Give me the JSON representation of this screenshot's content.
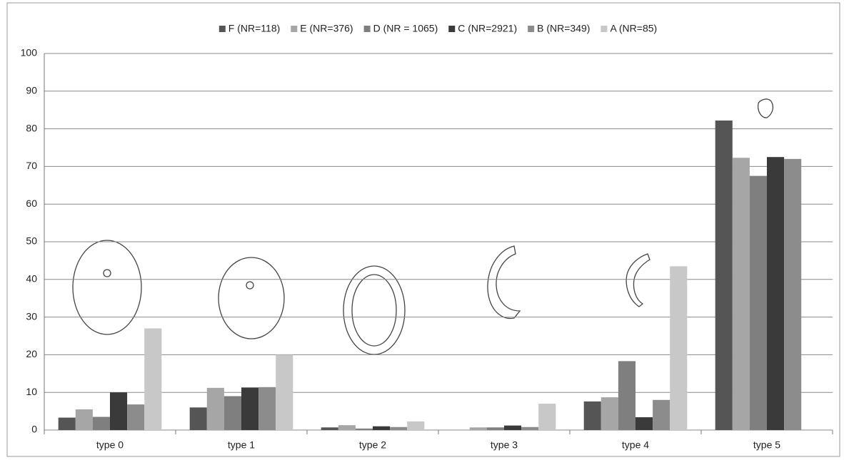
{
  "chart_data": {
    "type": "bar",
    "categories": [
      "type 0",
      "type 1",
      "type 2",
      "type 3",
      "type 4",
      "type 5"
    ],
    "series": [
      {
        "name": "F (NR=118)",
        "color": "#555555",
        "values": [
          3.3,
          6,
          0.7,
          0,
          7.6,
          82.2
        ]
      },
      {
        "name": "E (NR=376)",
        "color": "#a6a6a6",
        "values": [
          5.5,
          11.2,
          1.3,
          0.7,
          8.7,
          72.3
        ]
      },
      {
        "name": "D (NR = 1065)",
        "color": "#7f7f7f",
        "values": [
          3.5,
          9,
          0.4,
          0.7,
          18.3,
          67.5
        ]
      },
      {
        "name": "C (NR=2921)",
        "color": "#3a3a3a",
        "values": [
          10,
          11.3,
          1,
          1.2,
          3.4,
          72.5
        ]
      },
      {
        "name": "B (NR=349)",
        "color": "#8c8c8c",
        "values": [
          6.8,
          11.4,
          0.8,
          0.8,
          8,
          72
        ]
      },
      {
        "name": "A (NR=85)",
        "color": "#c8c8c8",
        "values": [
          27,
          20,
          2.3,
          7,
          43.5,
          0
        ]
      }
    ],
    "ylim": [
      0,
      100
    ],
    "yticks": [
      0,
      10,
      20,
      30,
      40,
      50,
      60,
      70,
      80,
      90,
      100
    ],
    "grid": true,
    "legend": "top"
  }
}
